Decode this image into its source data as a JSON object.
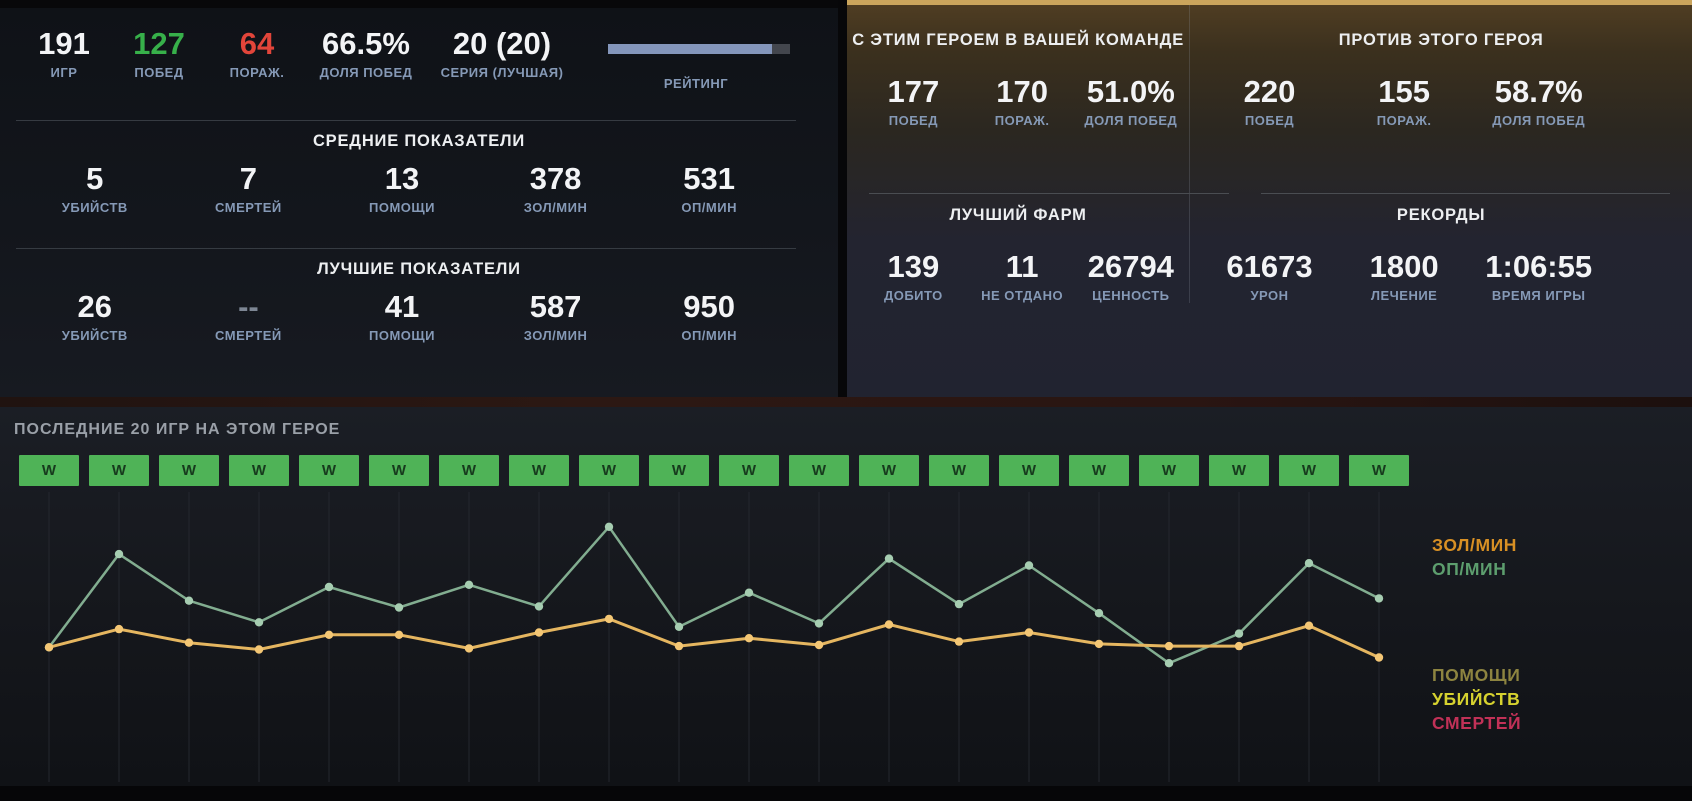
{
  "left_panel": {
    "summary": [
      {
        "value": "191",
        "label": "ИГР"
      },
      {
        "value": "127",
        "label": "ПОБЕД",
        "tone": "win"
      },
      {
        "value": "64",
        "label": "ПОРАЖ.",
        "tone": "loss"
      },
      {
        "value": "66.5%",
        "label": "ДОЛЯ ПОБЕД"
      },
      {
        "value": "20 (20)",
        "label": "СЕРИЯ (ЛУЧШАЯ)"
      }
    ],
    "rating": {
      "label": "РЕЙТИНГ",
      "progress_pct": 90
    },
    "sections": [
      {
        "title": "СРЕДНИЕ ПОКАЗАТЕЛИ",
        "stats": [
          {
            "value": "5",
            "label": "УБИЙСТВ"
          },
          {
            "value": "7",
            "label": "СМЕРТЕЙ"
          },
          {
            "value": "13",
            "label": "ПОМОЩИ"
          },
          {
            "value": "378",
            "label": "ЗОЛ/МИН"
          },
          {
            "value": "531",
            "label": "ОП/МИН"
          }
        ]
      },
      {
        "title": "ЛУЧШИЕ ПОКАЗАТЕЛИ",
        "stats": [
          {
            "value": "26",
            "label": "УБИЙСТВ"
          },
          {
            "value": "--",
            "label": "СМЕРТЕЙ",
            "tone": "muted"
          },
          {
            "value": "41",
            "label": "ПОМОЩИ"
          },
          {
            "value": "587",
            "label": "ЗОЛ/МИН"
          },
          {
            "value": "950",
            "label": "ОП/МИН"
          }
        ]
      }
    ]
  },
  "right_panel": {
    "with_hero": {
      "title": "С ЭТИМ ГЕРОЕМ В ВАШЕЙ КОМАНДЕ",
      "stats": [
        {
          "value": "177",
          "label": "ПОБЕД"
        },
        {
          "value": "170",
          "label": "ПОРАЖ."
        },
        {
          "value": "51.0%",
          "label": "ДОЛЯ ПОБЕД"
        }
      ]
    },
    "against_hero": {
      "title": "ПРОТИВ ЭТОГО ГЕРОЯ",
      "stats": [
        {
          "value": "220",
          "label": "ПОБЕД"
        },
        {
          "value": "155",
          "label": "ПОРАЖ."
        },
        {
          "value": "58.7%",
          "label": "ДОЛЯ ПОБЕД"
        }
      ]
    },
    "best_farm": {
      "title": "ЛУЧШИЙ ФАРМ",
      "stats": [
        {
          "value": "139",
          "label": "ДОБИТО"
        },
        {
          "value": "11",
          "label": "НЕ ОТДАНО"
        },
        {
          "value": "26794",
          "label": "ЦЕННОСТЬ"
        }
      ]
    },
    "records": {
      "title": "РЕКОРДЫ",
      "stats": [
        {
          "value": "61673",
          "label": "УРОН"
        },
        {
          "value": "1800",
          "label": "ЛЕЧЕНИЕ"
        },
        {
          "value": "1:06:55",
          "label": "ВРЕМЯ ИГРЫ"
        }
      ]
    }
  },
  "recent_games": {
    "title": "ПОСЛЕДНИЕ 20 ИГР НА ЭТОМ ГЕРОЕ",
    "results": [
      "W",
      "W",
      "W",
      "W",
      "W",
      "W",
      "W",
      "W",
      "W",
      "W",
      "W",
      "W",
      "W",
      "W",
      "W",
      "W",
      "W",
      "W",
      "W",
      "W"
    ]
  },
  "chart_data": {
    "type": "line",
    "title": "ПОСЛЕДНИЕ 20 ИГР НА ЭТОМ ГЕРОЕ",
    "x": [
      1,
      2,
      3,
      4,
      5,
      6,
      7,
      8,
      9,
      10,
      11,
      12,
      13,
      14,
      15,
      16,
      17,
      18,
      19,
      20
    ],
    "xlabel": "",
    "ylabel": "",
    "ylim": [
      0,
      1000
    ],
    "grid": "vertical-only",
    "axes_labels_visible": false,
    "series": [
      {
        "name": "ОП/МИН",
        "line_color": "#82ad90",
        "dot_color": "#a6cdb1",
        "width": 2.5,
        "values": [
          320,
          730,
          525,
          430,
          585,
          495,
          595,
          500,
          850,
          410,
          560,
          425,
          710,
          510,
          680,
          470,
          250,
          380,
          690,
          535
        ]
      },
      {
        "name": "ЗОЛ/МИН",
        "line_color": "#e5b660",
        "dot_color": "#f4c775",
        "width": 3,
        "values": [
          320,
          400,
          340,
          310,
          375,
          375,
          315,
          385,
          445,
          325,
          360,
          330,
          420,
          345,
          385,
          335,
          325,
          325,
          415,
          275
        ]
      }
    ],
    "legend": {
      "position": "right",
      "top_group": [
        {
          "label": "ЗОЛ/МИН",
          "color": "#d89024"
        },
        {
          "label": "ОП/МИН",
          "color": "#5d9e6e"
        }
      ],
      "bottom_group": [
        {
          "label": "ПОМОЩИ",
          "color": "#8d8440"
        },
        {
          "label": "УБИЙСТВ",
          "color": "#d6d22f"
        },
        {
          "label": "СМЕРТЕЙ",
          "color": "#c13157"
        }
      ]
    }
  },
  "colors": {
    "win_green": "#37b04a",
    "loss_red": "#e2453a",
    "label_blue": "#8599b6",
    "win_tile": "#4fb357",
    "rating_fill": "#8496bb",
    "rating_track": "#43464d",
    "gold_border": "#cba55c",
    "gridline": "#24272e"
  }
}
